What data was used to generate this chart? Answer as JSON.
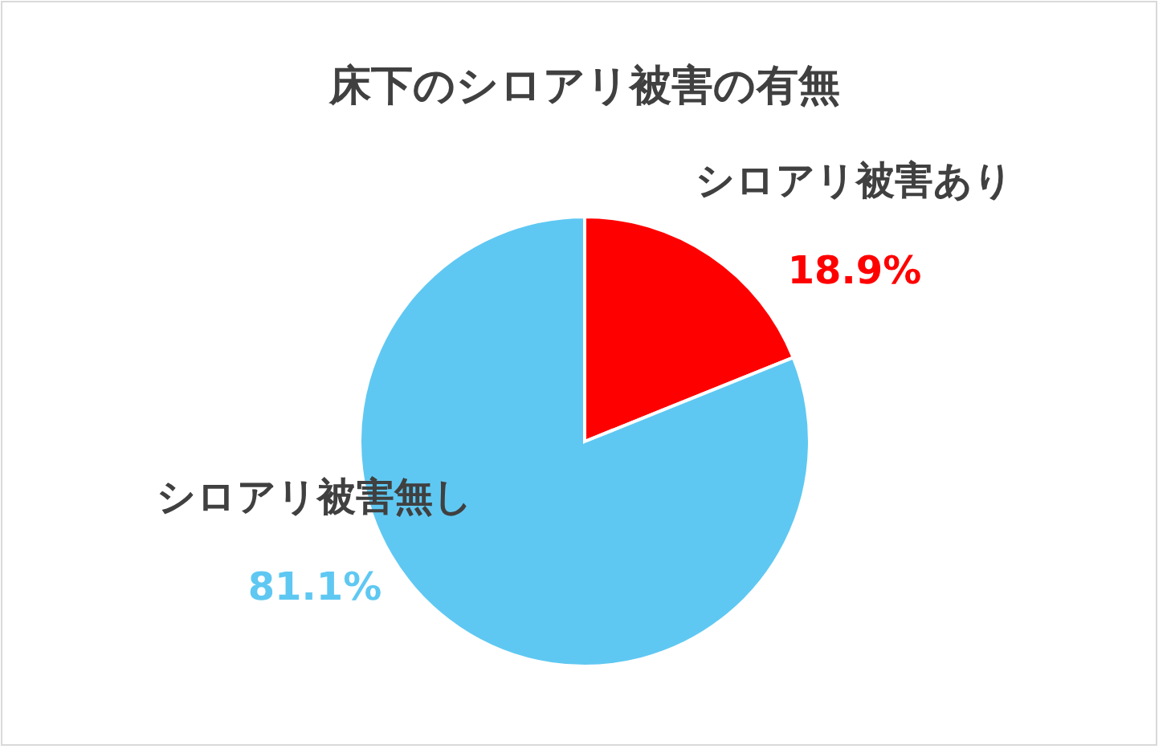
{
  "chart_data": {
    "type": "pie",
    "title": "床下のシロアリ被害の有無",
    "categories": [
      "シロアリ被害あり",
      "シロアリ被害無し"
    ],
    "values": [
      18.9,
      81.1
    ],
    "colors": [
      "#ff0000",
      "#5fc8f2"
    ],
    "value_labels": [
      "18.9%",
      "81.1%"
    ],
    "legend": false
  }
}
